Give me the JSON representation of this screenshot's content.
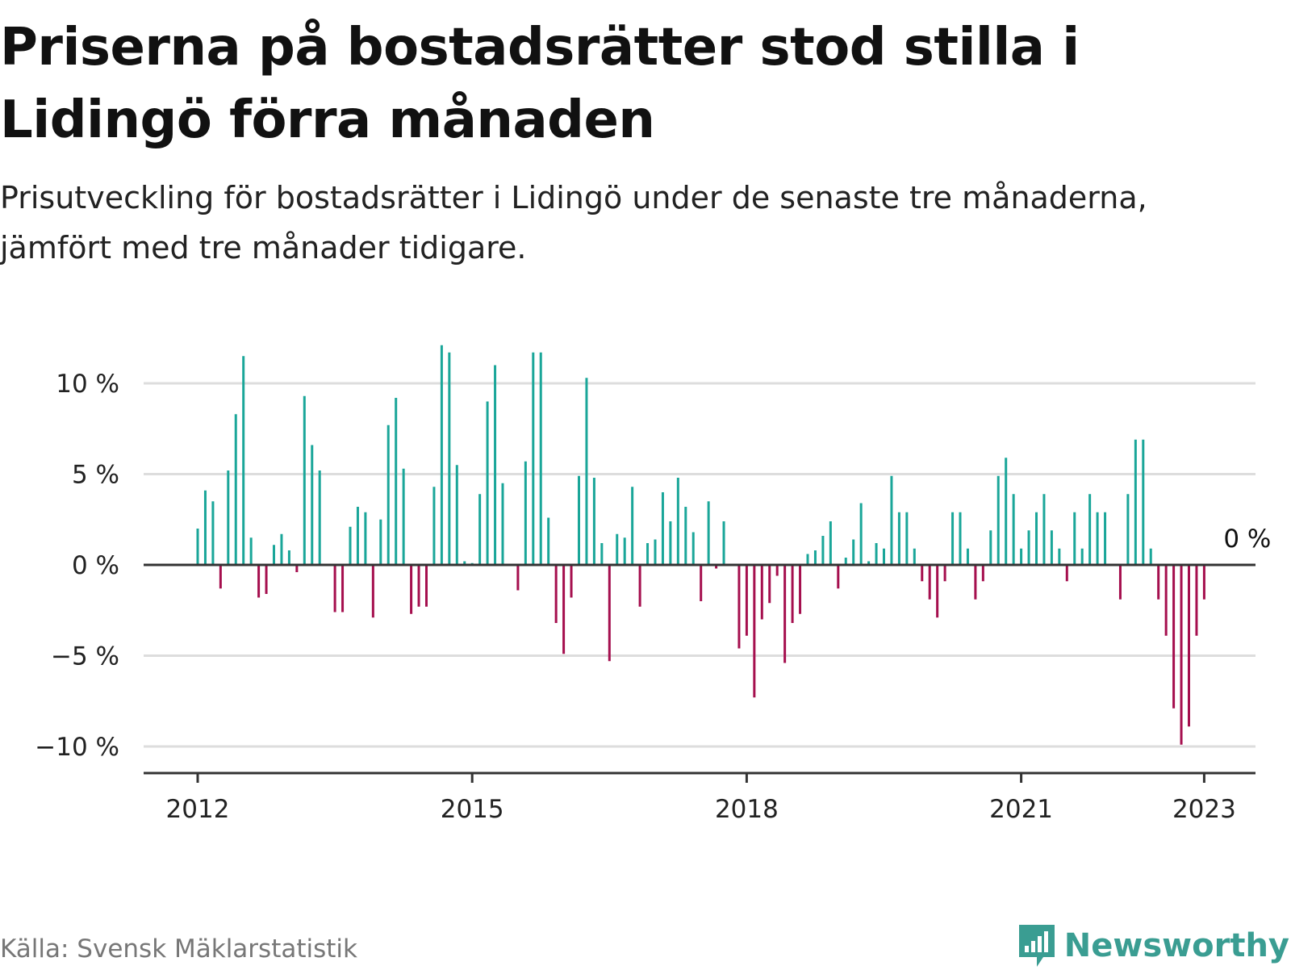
{
  "title": "Priserna på bostadsrätter stod stilla i Lidingö förra månaden",
  "subtitle": "Prisutveckling för bostadsrätter i Lidingö under de senaste tre månaderna, jämfört med tre månader tidigare.",
  "source": "Källa: Svensk Mäklarstatistik",
  "brand": {
    "name": "Newsworthy",
    "icon": "newsworthy-logo-icon"
  },
  "colors": {
    "positive": "#1aa699",
    "negative": "#a50f4e",
    "grid": "#dddddd",
    "axis": "#333333",
    "brand": "#3a9d92"
  },
  "chart_data": {
    "type": "bar",
    "title": "Priserna på bostadsrätter stod stilla i Lidingö förra månaden",
    "subtitle": "Prisutveckling för bostadsrätter i Lidingö under de senaste tre månaderna, jämfört med tre månader tidigare.",
    "xlabel": "",
    "ylabel": "",
    "unit": "%",
    "x_start": "2012-01",
    "x_end": "2023-01",
    "x_ticks": [
      "2012",
      "2015",
      "2018",
      "2021",
      "2023"
    ],
    "y_ticks": [
      {
        "value": 10,
        "label": "10 %"
      },
      {
        "value": 5,
        "label": "5 %"
      },
      {
        "value": 0,
        "label": "0 %"
      },
      {
        "value": -5,
        "label": "−5 %"
      },
      {
        "value": -10,
        "label": "−10 %"
      }
    ],
    "ylim": [
      -11.5,
      12.3
    ],
    "grid": true,
    "last_value_label": "0 %",
    "series": [
      {
        "values": [
          2.0,
          4.1,
          3.5,
          -1.3,
          5.2,
          8.3,
          11.5,
          1.5,
          -1.8,
          -1.6,
          1.1,
          1.7,
          0.8,
          -0.4,
          9.3,
          6.6,
          5.2,
          0,
          -2.6,
          -2.6,
          2.1,
          3.2,
          2.9,
          -2.9,
          2.5,
          7.7,
          9.2,
          5.3,
          -2.7,
          -2.3,
          -2.3,
          4.3,
          12.1,
          11.7,
          5.5,
          0.2,
          0.1,
          3.9,
          9.0,
          11.0,
          4.5,
          0,
          -1.4,
          5.7,
          11.7,
          11.7,
          2.6,
          -3.2,
          -4.9,
          -1.8,
          4.9,
          10.3,
          4.8,
          1.2,
          -5.3,
          1.7,
          1.5,
          4.3,
          -2.3,
          1.2,
          1.4,
          4.0,
          2.4,
          4.8,
          3.2,
          1.8,
          -2.0,
          3.5,
          -0.2,
          2.4,
          0,
          -4.6,
          -3.9,
          -7.3,
          -3.0,
          -2.1,
          -0.6,
          -5.4,
          -3.2,
          -2.7,
          0.6,
          0.8,
          1.6,
          2.4,
          -1.3,
          0.4,
          1.4,
          3.4,
          0.2,
          1.2,
          0.9,
          4.9,
          2.9,
          2.9,
          0.9,
          -0.9,
          -1.9,
          -2.9,
          -0.9,
          2.9,
          2.9,
          0.9,
          -1.9,
          -0.9,
          1.9,
          4.9,
          5.9,
          3.9,
          0.9,
          1.9,
          2.9,
          3.9,
          1.9,
          0.9,
          -0.9,
          2.9,
          0.9,
          3.9,
          2.9,
          2.9,
          0,
          -1.9,
          3.9,
          6.9,
          6.9,
          0.9,
          -1.9,
          -3.9,
          -7.9,
          -9.9,
          -8.9,
          -3.9,
          -1.9,
          0
        ]
      }
    ]
  }
}
